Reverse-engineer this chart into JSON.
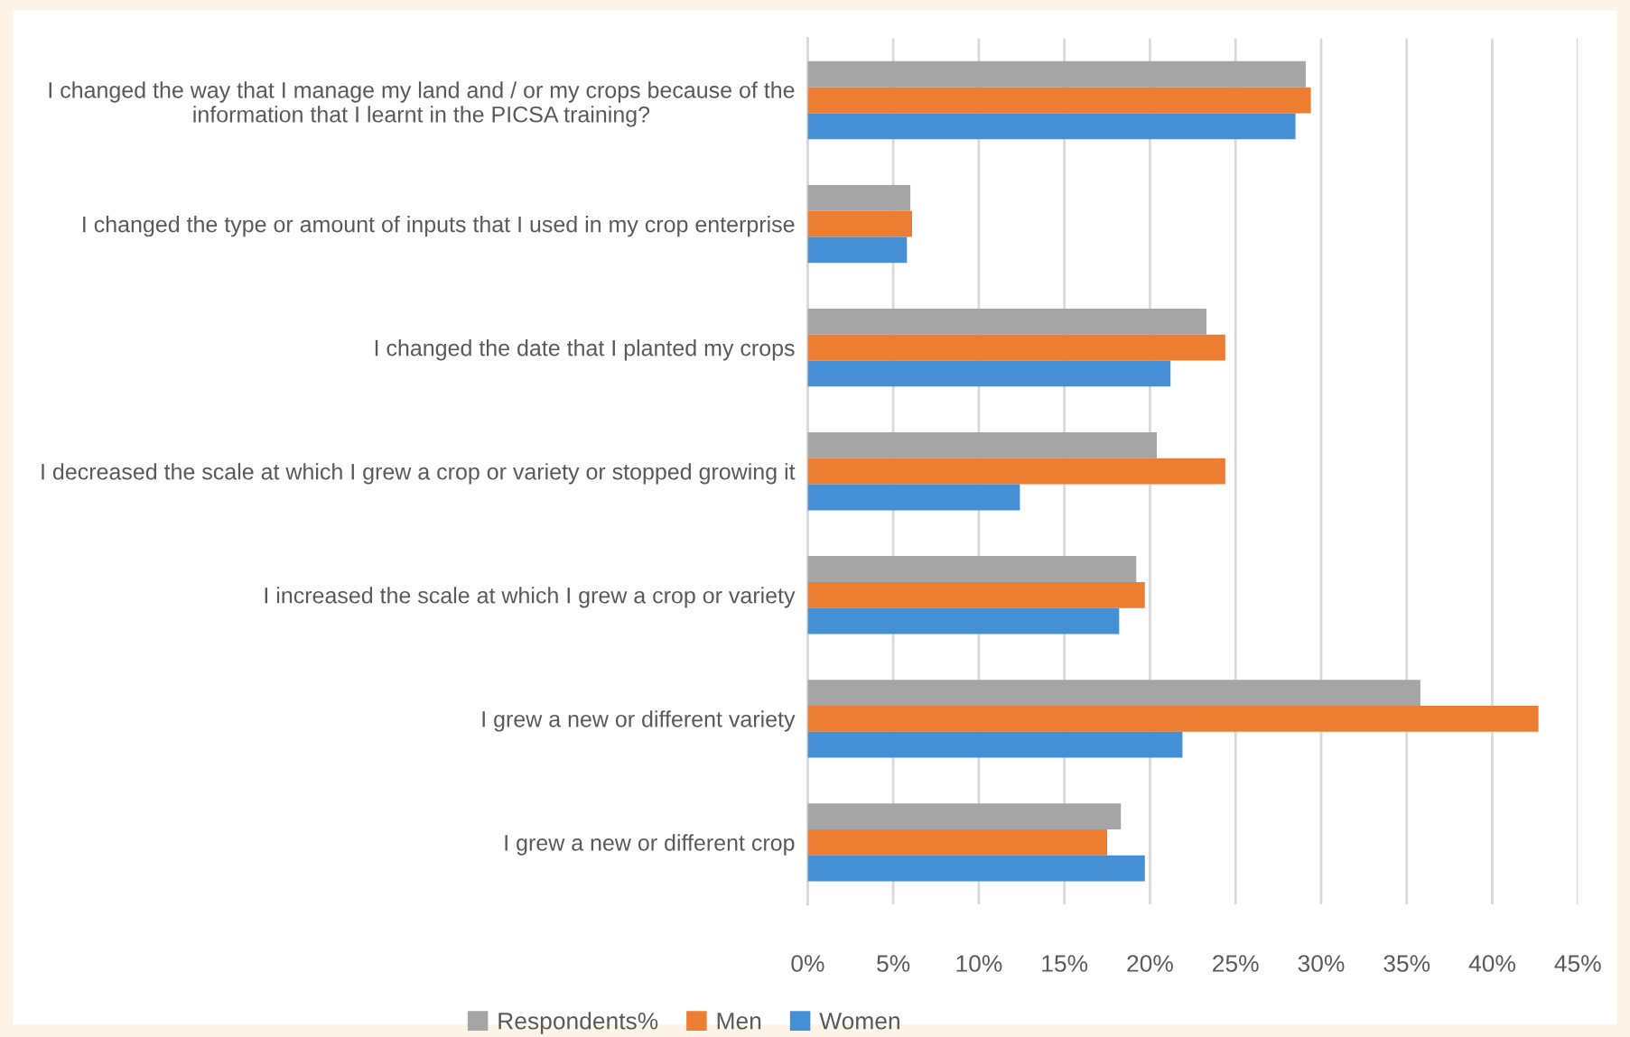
{
  "chart_data": {
    "type": "bar",
    "orientation": "horizontal",
    "categories": [
      "I changed the way that I manage my land and / or my crops because of the information that I learnt in the PICSA training?",
      "I changed the type or amount of inputs that I used in my crop enterprise",
      "I changed the date that I planted my crops",
      "I decreased the scale at which I grew a crop or variety or stopped growing it",
      "I increased the scale at which I grew a crop or variety",
      "I grew a new or different variety",
      "I grew a new or different crop"
    ],
    "series": [
      {
        "name": "Respondents%",
        "color": "#a5a5a5",
        "values": [
          29.1,
          6.0,
          23.3,
          20.4,
          19.2,
          35.8,
          18.3
        ]
      },
      {
        "name": "Men",
        "color": "#ed7d31",
        "values": [
          29.4,
          6.1,
          24.4,
          24.4,
          19.7,
          42.7,
          17.5
        ]
      },
      {
        "name": "Women",
        "color": "#4590d4",
        "values": [
          28.5,
          5.8,
          21.2,
          12.4,
          18.2,
          21.9,
          19.7
        ]
      }
    ],
    "xlim": [
      0,
      45
    ],
    "xticks": [
      {
        "value": 0,
        "label": "0%"
      },
      {
        "value": 5,
        "label": "5%"
      },
      {
        "value": 10,
        "label": "10%"
      },
      {
        "value": 15,
        "label": "15%"
      },
      {
        "value": 20,
        "label": "20%"
      },
      {
        "value": 25,
        "label": "25%"
      },
      {
        "value": 30,
        "label": "30%"
      },
      {
        "value": 35,
        "label": "35%"
      },
      {
        "value": 40,
        "label": "40%"
      },
      {
        "value": 45,
        "label": "45%"
      }
    ],
    "grid": "x",
    "legend": "bottom"
  }
}
